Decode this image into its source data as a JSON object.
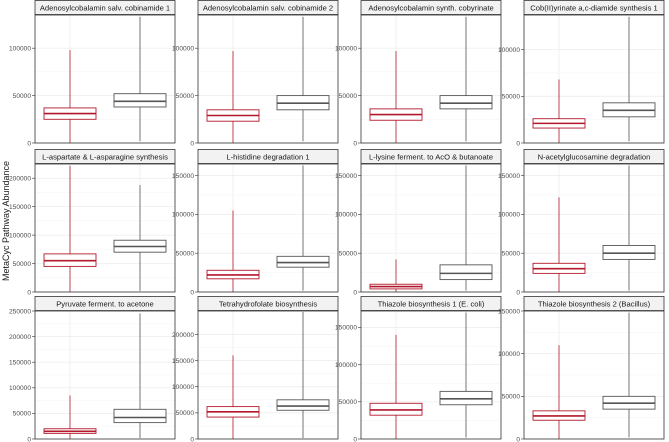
{
  "figure": {
    "ylabel": "MetaCyc Pathway Abundance",
    "group_colors": [
      "#b2182b",
      "#555555"
    ],
    "panel_strip_fill": "#f2f2f2",
    "grid": true
  },
  "chart_data": [
    {
      "type": "box",
      "title": "Adenosylcobalamin salv. cobinamide 1",
      "ylim": [
        0,
        135000
      ],
      "yticks": [
        0,
        50000,
        100000
      ],
      "groups": [
        {
          "min": 0,
          "q1": 25000,
          "median": 31000,
          "q3": 37000,
          "max": 98000
        },
        {
          "min": 2000,
          "q1": 38000,
          "median": 44000,
          "q3": 52000,
          "max": 133000
        }
      ]
    },
    {
      "type": "box",
      "title": "Adenosylcobalamin salv. cobinamide 2",
      "ylim": [
        0,
        135000
      ],
      "yticks": [
        0,
        50000,
        100000
      ],
      "groups": [
        {
          "min": 0,
          "q1": 23000,
          "median": 29000,
          "q3": 35000,
          "max": 97000
        },
        {
          "min": 2000,
          "q1": 35000,
          "median": 42000,
          "q3": 50000,
          "max": 133000
        }
      ]
    },
    {
      "type": "box",
      "title": "Adenosylcobalamin synth. cobyrinate",
      "ylim": [
        0,
        135000
      ],
      "yticks": [
        0,
        50000,
        100000
      ],
      "groups": [
        {
          "min": 0,
          "q1": 24000,
          "median": 30000,
          "q3": 36000,
          "max": 97000
        },
        {
          "min": 2000,
          "q1": 36000,
          "median": 42000,
          "q3": 50000,
          "max": 133000
        }
      ]
    },
    {
      "type": "box",
      "title": "Cob(II)yrinate a,c-diamide synthesis 1",
      "ylim": [
        0,
        137000
      ],
      "yticks": [
        0,
        50000,
        100000
      ],
      "groups": [
        {
          "min": 0,
          "q1": 16000,
          "median": 21000,
          "q3": 26000,
          "max": 68000
        },
        {
          "min": 2000,
          "q1": 28000,
          "median": 35000,
          "q3": 43000,
          "max": 135000
        }
      ]
    },
    {
      "type": "box",
      "title": "L-aspartate & L-asparagine synthesis",
      "ylim": [
        0,
        225000
      ],
      "yticks": [
        0,
        50000,
        100000,
        150000,
        200000
      ],
      "groups": [
        {
          "min": 0,
          "q1": 45000,
          "median": 55000,
          "q3": 67000,
          "max": 222000
        },
        {
          "min": 2000,
          "q1": 70000,
          "median": 80000,
          "q3": 91000,
          "max": 188000
        }
      ]
    },
    {
      "type": "box",
      "title": "L-histidine degradation 1",
      "ylim": [
        0,
        165000
      ],
      "yticks": [
        0,
        50000,
        100000,
        150000
      ],
      "groups": [
        {
          "min": 0,
          "q1": 17000,
          "median": 22000,
          "q3": 28000,
          "max": 105000
        },
        {
          "min": 2000,
          "q1": 32000,
          "median": 38000,
          "q3": 46000,
          "max": 163000
        }
      ]
    },
    {
      "type": "box",
      "title": "L-lysine ferment. to AcO & butanoate",
      "ylim": [
        0,
        165000
      ],
      "yticks": [
        0,
        50000,
        100000,
        150000
      ],
      "groups": [
        {
          "min": 0,
          "q1": 4000,
          "median": 7000,
          "q3": 10000,
          "max": 42000
        },
        {
          "min": 2000,
          "q1": 16000,
          "median": 24000,
          "q3": 35000,
          "max": 163000
        }
      ]
    },
    {
      "type": "box",
      "title": "N-acetylglucosamine degradation",
      "ylim": [
        0,
        165000
      ],
      "yticks": [
        0,
        50000,
        100000,
        150000
      ],
      "groups": [
        {
          "min": 0,
          "q1": 24000,
          "median": 30000,
          "q3": 37000,
          "max": 122000
        },
        {
          "min": 2000,
          "q1": 42000,
          "median": 50000,
          "q3": 60000,
          "max": 163000
        }
      ]
    },
    {
      "type": "box",
      "title": "Pyruvate ferment. to acetone",
      "ylim": [
        0,
        250000
      ],
      "yticks": [
        0,
        50000,
        100000,
        150000,
        200000,
        250000
      ],
      "groups": [
        {
          "min": 0,
          "q1": 11000,
          "median": 15000,
          "q3": 20000,
          "max": 85000
        },
        {
          "min": 2000,
          "q1": 32000,
          "median": 42000,
          "q3": 58000,
          "max": 245000
        }
      ]
    },
    {
      "type": "box",
      "title": "Tetrahydrofolate biosynthesis",
      "ylim": [
        0,
        245000
      ],
      "yticks": [
        0,
        50000,
        100000,
        150000,
        200000
      ],
      "groups": [
        {
          "min": 0,
          "q1": 42000,
          "median": 52000,
          "q3": 62000,
          "max": 160000
        },
        {
          "min": 2000,
          "q1": 55000,
          "median": 63000,
          "q3": 75000,
          "max": 243000
        }
      ]
    },
    {
      "type": "box",
      "title": "Thiazole biosynthesis 1 (E. coli)",
      "ylim": [
        0,
        172000
      ],
      "yticks": [
        0,
        50000,
        100000,
        150000
      ],
      "groups": [
        {
          "min": 0,
          "q1": 32000,
          "median": 39000,
          "q3": 48000,
          "max": 140000
        },
        {
          "min": 2000,
          "q1": 46000,
          "median": 54000,
          "q3": 64000,
          "max": 170000
        }
      ]
    },
    {
      "type": "box",
      "title": "Thiazole biosynthesis 2 (Bacillus)",
      "ylim": [
        0,
        150000
      ],
      "yticks": [
        0,
        50000,
        100000,
        150000
      ],
      "groups": [
        {
          "min": 0,
          "q1": 22000,
          "median": 27000,
          "q3": 33000,
          "max": 110000
        },
        {
          "min": 2000,
          "q1": 35000,
          "median": 42000,
          "q3": 50000,
          "max": 148000
        }
      ]
    }
  ]
}
